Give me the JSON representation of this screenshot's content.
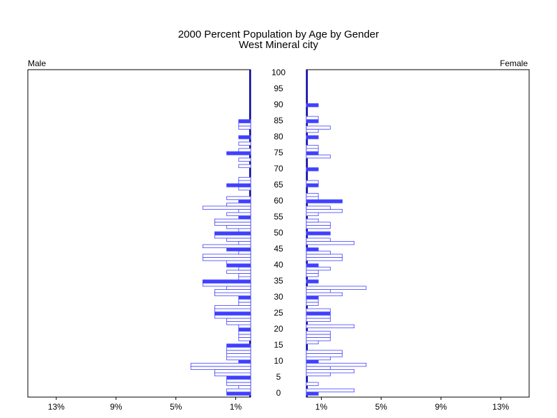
{
  "chart_data": {
    "type": "bar",
    "orientation": "horizontal-pyramid",
    "title": "2000 Percent Population by Age by Gender",
    "subtitle": "West Mineral city",
    "categories": [
      "0",
      null,
      null,
      null,
      null,
      "5",
      null,
      null,
      null,
      null,
      "10",
      null,
      null,
      null,
      null,
      "15",
      null,
      null,
      null,
      null,
      "20",
      null,
      null,
      null,
      null,
      "25",
      null,
      null,
      null,
      null,
      "30",
      null,
      null,
      null,
      null,
      "35",
      null,
      null,
      null,
      null,
      "40",
      null,
      null,
      null,
      null,
      "45",
      null,
      null,
      null,
      null,
      "50",
      null,
      null,
      null,
      null,
      "55",
      null,
      null,
      null,
      null,
      "60",
      null,
      null,
      null,
      null,
      "65",
      null,
      null,
      null,
      null,
      "70",
      null,
      null,
      null,
      null,
      "75",
      null,
      null,
      null,
      null,
      "80",
      null,
      null,
      null,
      null,
      "85",
      null,
      null,
      null,
      null,
      "90",
      null,
      null,
      null,
      null,
      "95",
      null,
      null,
      null,
      null,
      "100"
    ],
    "series": [
      {
        "name": "Male",
        "color": "#4040ff",
        "values": [
          1.6,
          1.6,
          0.8,
          1.6,
          1.6,
          1.6,
          2.4,
          2.4,
          4,
          4,
          0.8,
          1.6,
          1.6,
          1.6,
          1.6,
          1.6,
          0,
          0.8,
          0.8,
          0.8,
          0.8,
          0.8,
          1.6,
          1.6,
          2.4,
          2.4,
          2.4,
          2.4,
          0.8,
          0.8,
          0.8,
          2.4,
          2.4,
          1.6,
          3.2,
          3.2,
          0.8,
          0.8,
          1.6,
          0.8,
          1.6,
          1.6,
          3.2,
          3.2,
          0.8,
          1.6,
          3.2,
          0.8,
          1.6,
          2.4,
          2.4,
          0.8,
          1.6,
          2.4,
          2.4,
          0.8,
          1.6,
          0.8,
          3.2,
          1.6,
          0.8,
          1.6,
          0,
          0,
          0.8,
          1.6,
          0.8,
          0.8,
          0,
          0,
          0,
          0.8,
          0,
          0.8,
          0,
          1.6,
          0.8,
          0,
          0.8,
          0,
          0.8,
          0,
          0,
          0.8,
          0.8,
          0.8,
          0,
          0,
          0,
          0,
          0,
          0,
          0,
          0,
          0,
          0,
          0,
          0,
          0,
          0,
          0
        ]
      },
      {
        "name": "Female",
        "color": "#4040ff",
        "values": [
          0.8,
          3.2,
          0,
          0.8,
          0,
          0,
          1.6,
          3.2,
          1.6,
          4,
          0.8,
          1.6,
          2.4,
          2.4,
          0,
          0,
          0.8,
          1.6,
          1.6,
          1.6,
          0,
          3.2,
          0,
          1.6,
          1.6,
          1.6,
          1.6,
          0,
          0.8,
          0.8,
          0.8,
          2.4,
          1.6,
          4,
          0,
          0.8,
          0,
          0.8,
          0.8,
          1.6,
          0.8,
          0,
          2.4,
          2.4,
          1.6,
          0.8,
          0,
          3.2,
          1.6,
          0,
          1.6,
          0,
          1.6,
          1.6,
          0.8,
          0,
          0.8,
          2.4,
          1.6,
          0,
          2.4,
          0.8,
          0.8,
          0,
          0,
          0.8,
          0.8,
          0,
          0,
          0,
          0.8,
          0,
          0,
          0,
          1.6,
          0.8,
          0.8,
          0.8,
          0,
          0,
          0.8,
          0,
          0.8,
          1.6,
          0,
          0.8,
          0.8,
          0,
          0,
          0,
          0.8,
          0,
          0,
          0,
          0,
          0,
          0,
          0,
          0,
          0,
          0
        ]
      }
    ],
    "xlim": [
      0,
      14.9
    ],
    "xticks": [
      {
        "value": 1,
        "label": "1%"
      },
      {
        "value": 5,
        "label": "5%"
      },
      {
        "value": 9,
        "label": "9%"
      },
      {
        "value": 13,
        "label": "13%"
      }
    ]
  }
}
